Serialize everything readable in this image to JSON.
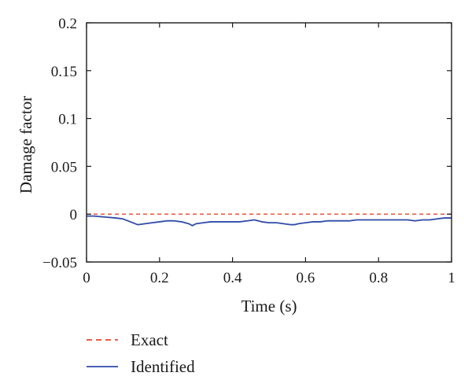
{
  "chart_data": {
    "type": "line",
    "title": "",
    "xlabel": "Time (s)",
    "ylabel": "Damage factor",
    "xlim": [
      0,
      1
    ],
    "ylim": [
      -0.05,
      0.2
    ],
    "xticks": [
      0,
      0.2,
      0.4,
      0.6,
      0.8,
      1
    ],
    "xtick_labels": [
      "0",
      "0.2",
      "0.4",
      "0.6",
      "0.8",
      "1"
    ],
    "yticks": [
      -0.05,
      0,
      0.05,
      0.1,
      0.15,
      0.2
    ],
    "ytick_labels": [
      "−0.05",
      "0",
      "0.05",
      "0.1",
      "0.15",
      "0.2"
    ],
    "grid": false,
    "legend_position": "bottom-left, below plot",
    "series": [
      {
        "name": "Exact",
        "style": "dashed",
        "color": "#e8452c",
        "x": [
          0,
          1
        ],
        "y": [
          0,
          0
        ]
      },
      {
        "name": "Identified",
        "style": "solid",
        "color": "#2f4aa8",
        "x": [
          0,
          0.02,
          0.05,
          0.08,
          0.1,
          0.12,
          0.14,
          0.16,
          0.18,
          0.2,
          0.22,
          0.24,
          0.26,
          0.28,
          0.29,
          0.3,
          0.32,
          0.34,
          0.36,
          0.38,
          0.4,
          0.42,
          0.44,
          0.46,
          0.48,
          0.5,
          0.52,
          0.54,
          0.56,
          0.57,
          0.58,
          0.6,
          0.62,
          0.64,
          0.66,
          0.68,
          0.7,
          0.72,
          0.74,
          0.76,
          0.78,
          0.8,
          0.82,
          0.84,
          0.86,
          0.88,
          0.9,
          0.92,
          0.94,
          0.96,
          0.98,
          1
        ],
        "y": [
          -0.002,
          -0.002,
          -0.003,
          -0.004,
          -0.005,
          -0.008,
          -0.011,
          -0.01,
          -0.009,
          -0.008,
          -0.007,
          -0.007,
          -0.008,
          -0.01,
          -0.012,
          -0.01,
          -0.009,
          -0.008,
          -0.008,
          -0.008,
          -0.008,
          -0.008,
          -0.007,
          -0.006,
          -0.008,
          -0.009,
          -0.009,
          -0.01,
          -0.011,
          -0.011,
          -0.01,
          -0.009,
          -0.008,
          -0.008,
          -0.007,
          -0.007,
          -0.007,
          -0.007,
          -0.006,
          -0.006,
          -0.006,
          -0.006,
          -0.006,
          -0.006,
          -0.006,
          -0.006,
          -0.007,
          -0.006,
          -0.006,
          -0.005,
          -0.004,
          -0.004
        ]
      }
    ]
  }
}
